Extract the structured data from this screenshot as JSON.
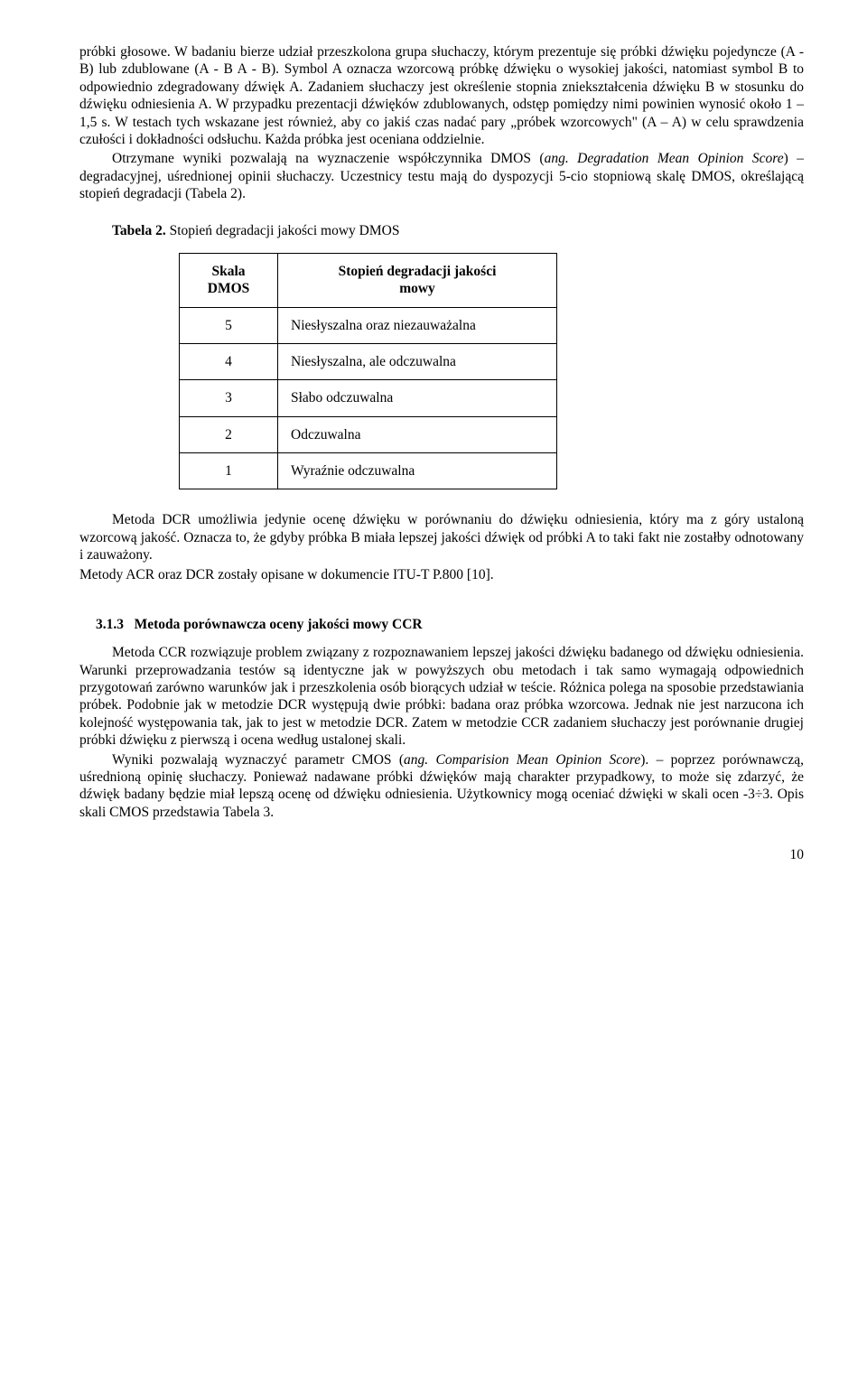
{
  "para1": "próbki głosowe. W badaniu bierze udział przeszkolona grupa słuchaczy, którym prezentuje się próbki dźwięku pojedyncze (A - B) lub zdublowane (A - B A - B). Symbol A oznacza wzorcową próbkę dźwięku o wysokiej jakości, natomiast symbol B to odpowiednio zdegradowany dźwięk A. Zadaniem słuchaczy jest określenie stopnia zniekształcenia dźwięku B w stosunku do dźwięku odniesienia A. W przypadku prezentacji dźwięków zdublowanych, odstęp pomiędzy nimi powinien wynosić około 1 – 1,5 s. W testach tych wskazane jest również, aby co jakiś czas nadać pary „próbek wzorcowych\" (A – A) w celu sprawdzenia czułości i dokładności odsłuchu. Każda próbka jest oceniana oddzielnie.",
  "para2a": "Otrzymane wyniki pozwalają na wyznaczenie współczynnika DMOS (",
  "para2b": "ang. Degradation Mean Opinion Score",
  "para2c": ") – degradacyjnej, uśrednionej opinii słuchaczy. Uczestnicy testu mają do dyspozycji 5-cio stopniową skalę DMOS, określającą stopień degradacji (Tabela 2).",
  "table2_caption_bold": "Tabela 2.",
  "table2_caption_rest": " Stopień degradacji jakości mowy DMOS",
  "table2": {
    "header_col1_l1": "Skala",
    "header_col1_l2": "DMOS",
    "header_col2_l1": "Stopień degradacji jakości",
    "header_col2_l2": "mowy",
    "rows": [
      {
        "scale": "5",
        "desc": "Niesłyszalna oraz niezauważalna"
      },
      {
        "scale": "4",
        "desc": "Niesłyszalna, ale odczuwalna"
      },
      {
        "scale": "3",
        "desc": "Słabo odczuwalna"
      },
      {
        "scale": "2",
        "desc": "Odczuwalna"
      },
      {
        "scale": "1",
        "desc": "Wyraźnie odczuwalna"
      }
    ]
  },
  "para3": "Metoda DCR umożliwia jedynie ocenę dźwięku w porównaniu do dźwięku odniesienia, który ma z góry ustaloną wzorcową jakość. Oznacza to, że gdyby próbka B miała lepszej jakości dźwięk od próbki A to taki fakt nie zostałby odnotowany i zauważony.",
  "para4": "Metody ACR oraz DCR zostały opisane w dokumencie ITU-T P.800 [10].",
  "heading_num": "3.1.3",
  "heading_text": "Metoda porównawcza oceny jakości mowy CCR",
  "para5": "Metoda CCR rozwiązuje problem związany z rozpoznawaniem lepszej jakości dźwięku badanego od dźwięku odniesienia. Warunki przeprowadzania testów są identyczne jak w powyższych obu metodach i tak samo wymagają odpowiednich przygotowań zarówno warunków jak i przeszkolenia osób biorących udział w teście. Różnica polega na sposobie przedstawiania próbek. Podobnie jak w metodzie DCR występują dwie próbki: badana oraz próbka wzorcowa. Jednak nie jest narzucona ich kolejność występowania tak, jak to jest w metodzie DCR. Zatem w metodzie CCR zadaniem słuchaczy jest porównanie drugiej próbki dźwięku z pierwszą i ocena według ustalonej skali.",
  "para6a": "Wyniki pozwalają wyznaczyć parametr CMOS (",
  "para6b": "ang. Comparision Mean Opinion Score",
  "para6c": "). – poprzez porównawczą, uśrednioną opinię słuchaczy. Ponieważ nadawane próbki dźwięków mają charakter przypadkowy, to może się zdarzyć, że dźwięk badany będzie miał lepszą ocenę od dźwięku odniesienia. Użytkownicy mogą oceniać dźwięki w skali ocen -3÷3. Opis skali CMOS przedstawia Tabela 3.",
  "page_number": "10"
}
